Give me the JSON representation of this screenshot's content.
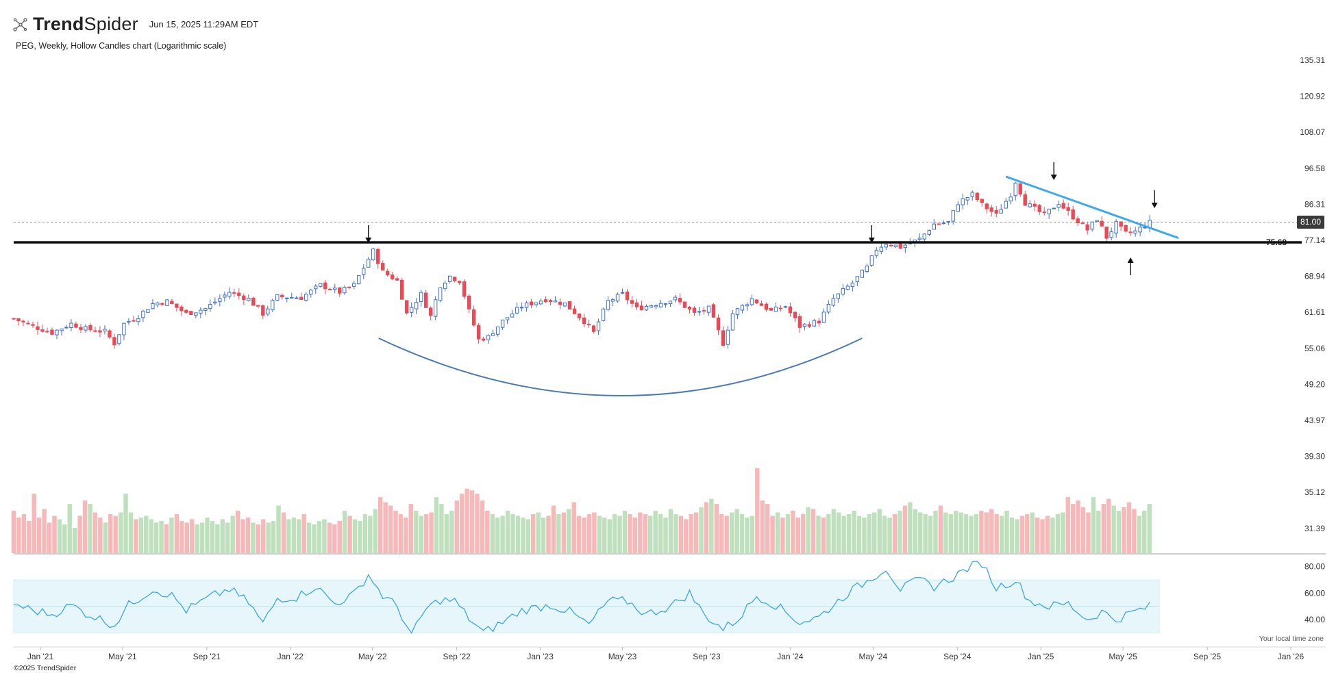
{
  "header": {
    "brand": "TrendSpider",
    "timestamp": "Jun 15, 2025 11:29AM EDT",
    "subtitle": "PEG, Weekly, Hollow Candles chart (Logarithmic scale)"
  },
  "footer": {
    "copyright": "©2025 TrendSpider",
    "timezone_note": "Your local time zone"
  },
  "colors": {
    "up": "#3b6fd6",
    "down": "#e84b55",
    "vol_up": "#bfe0bd",
    "vol_down": "#f6b8b8",
    "rsi_line": "#3aa6e0",
    "rsi_band": "#e6f6fb",
    "trend_line": "#3ea9ef",
    "cup_line": "#4a7bb7",
    "support_line": "#111111"
  },
  "chart_data": {
    "type": "candlestick",
    "symbol": "PEG",
    "interval": "Weekly",
    "scale": "log",
    "ylim": [
      47.0,
      140.0
    ],
    "price_ticks": [
      "135.31",
      "120.92",
      "108.07",
      "96.58",
      "86.31",
      "77.14",
      "68.94",
      "61.61",
      "55.06",
      "49.20",
      "43.97",
      "39.30",
      "35.12",
      "31.39"
    ],
    "x_range": [
      "2020-11-23",
      "2026-01-26"
    ],
    "x_ticks": [
      {
        "date": "2021-01-01",
        "label": "Jan '21"
      },
      {
        "date": "2021-05-01",
        "label": "May '21"
      },
      {
        "date": "2021-09-01",
        "label": "Sep '21"
      },
      {
        "date": "2022-01-01",
        "label": "Jan '22"
      },
      {
        "date": "2022-05-01",
        "label": "May '22"
      },
      {
        "date": "2022-09-01",
        "label": "Sep '22"
      },
      {
        "date": "2023-01-01",
        "label": "Jan '23"
      },
      {
        "date": "2023-05-01",
        "label": "May '23"
      },
      {
        "date": "2023-09-01",
        "label": "Sep '23"
      },
      {
        "date": "2024-01-01",
        "label": "Jan '24"
      },
      {
        "date": "2024-05-01",
        "label": "May '24"
      },
      {
        "date": "2024-09-01",
        "label": "Sep '24"
      },
      {
        "date": "2025-01-01",
        "label": "Jan '25"
      },
      {
        "date": "2025-05-01",
        "label": "May '25"
      },
      {
        "date": "2025-09-01",
        "label": "Sep '25"
      },
      {
        "date": "2026-01-01",
        "label": "Jan '26"
      }
    ],
    "last_price": "81.00",
    "support_level": "75.68",
    "close_path": [
      [
        "2020-11-23",
        58.5
      ],
      [
        "2020-12-21",
        57.0
      ],
      [
        "2021-01-18",
        55.8
      ],
      [
        "2021-02-15",
        57.5
      ],
      [
        "2021-03-08",
        56.5
      ],
      [
        "2021-04-05",
        56.0
      ],
      [
        "2021-04-19",
        53.8
      ],
      [
        "2021-05-03",
        57.5
      ],
      [
        "2021-05-24",
        59.0
      ],
      [
        "2021-06-14",
        61.5
      ],
      [
        "2021-07-05",
        62.0
      ],
      [
        "2021-08-02",
        59.5
      ],
      [
        "2021-08-30",
        60.5
      ],
      [
        "2021-10-04",
        64.0
      ],
      [
        "2021-11-01",
        62.5
      ],
      [
        "2021-11-22",
        59.5
      ],
      [
        "2021-12-13",
        63.0
      ],
      [
        "2022-01-17",
        62.8
      ],
      [
        "2022-02-14",
        65.5
      ],
      [
        "2022-03-14",
        64.0
      ],
      [
        "2022-04-04",
        65.5
      ],
      [
        "2022-04-25",
        71.5
      ],
      [
        "2022-05-02",
        73.5
      ],
      [
        "2022-05-16",
        68.5
      ],
      [
        "2022-06-06",
        66.5
      ],
      [
        "2022-06-20",
        59.5
      ],
      [
        "2022-07-11",
        63.5
      ],
      [
        "2022-07-25",
        59.0
      ],
      [
        "2022-08-08",
        65.5
      ],
      [
        "2022-08-22",
        67.5
      ],
      [
        "2022-09-05",
        66.5
      ],
      [
        "2022-09-19",
        60.0
      ],
      [
        "2022-10-03",
        54.5
      ],
      [
        "2022-10-17",
        55.0
      ],
      [
        "2022-11-07",
        58.0
      ],
      [
        "2022-12-05",
        61.0
      ],
      [
        "2023-01-09",
        62.5
      ],
      [
        "2023-02-06",
        61.5
      ],
      [
        "2023-03-06",
        58.0
      ],
      [
        "2023-03-20",
        55.8
      ],
      [
        "2023-04-10",
        62.0
      ],
      [
        "2023-05-01",
        63.5
      ],
      [
        "2023-05-22",
        60.5
      ],
      [
        "2023-06-19",
        61.5
      ],
      [
        "2023-07-17",
        62.5
      ],
      [
        "2023-08-14",
        59.5
      ],
      [
        "2023-09-04",
        60.5
      ],
      [
        "2023-09-25",
        53.8
      ],
      [
        "2023-10-09",
        59.5
      ],
      [
        "2023-11-06",
        62.5
      ],
      [
        "2023-12-04",
        60.0
      ],
      [
        "2023-12-25",
        61.0
      ],
      [
        "2024-01-15",
        57.0
      ],
      [
        "2024-02-12",
        58.0
      ],
      [
        "2024-03-04",
        62.5
      ],
      [
        "2024-04-01",
        66.0
      ],
      [
        "2024-04-22",
        69.5
      ],
      [
        "2024-05-06",
        74.0
      ],
      [
        "2024-05-20",
        75.5
      ],
      [
        "2024-06-10",
        74.5
      ],
      [
        "2024-07-08",
        76.5
      ],
      [
        "2024-07-29",
        80.5
      ],
      [
        "2024-08-19",
        81.0
      ],
      [
        "2024-09-02",
        86.5
      ],
      [
        "2024-09-23",
        89.0
      ],
      [
        "2024-10-07",
        86.0
      ],
      [
        "2024-10-28",
        83.0
      ],
      [
        "2024-11-18",
        89.0
      ],
      [
        "2024-11-25",
        93.0
      ],
      [
        "2024-12-09",
        86.5
      ],
      [
        "2025-01-06",
        83.0
      ],
      [
        "2025-01-27",
        86.5
      ],
      [
        "2025-02-17",
        82.5
      ],
      [
        "2025-03-10",
        79.0
      ],
      [
        "2025-03-24",
        82.0
      ],
      [
        "2025-04-07",
        77.0
      ],
      [
        "2025-04-21",
        80.5
      ],
      [
        "2025-05-05",
        78.0
      ],
      [
        "2025-05-19",
        78.5
      ],
      [
        "2025-06-09",
        81.0
      ]
    ],
    "rsi": {
      "band": [
        30,
        70
      ],
      "tick_labels": [
        "80.00",
        "60.00",
        "40.00"
      ],
      "ylim": [
        23,
        86
      ],
      "path": [
        [
          "2020-11-23",
          52
        ],
        [
          "2020-12-21",
          47
        ],
        [
          "2021-01-18",
          44
        ],
        [
          "2021-02-15",
          51
        ],
        [
          "2021-03-08",
          45
        ],
        [
          "2021-04-19",
          36
        ],
        [
          "2021-05-10",
          51
        ],
        [
          "2021-06-14",
          63
        ],
        [
          "2021-07-12",
          58
        ],
        [
          "2021-08-02",
          47
        ],
        [
          "2021-09-06",
          57
        ],
        [
          "2021-10-04",
          63
        ],
        [
          "2021-11-01",
          53
        ],
        [
          "2021-11-22",
          37
        ],
        [
          "2021-12-13",
          56
        ],
        [
          "2022-01-10",
          57
        ],
        [
          "2022-02-07",
          65
        ],
        [
          "2022-03-07",
          52
        ],
        [
          "2022-04-04",
          59
        ],
        [
          "2022-04-25",
          74
        ],
        [
          "2022-05-16",
          58
        ],
        [
          "2022-06-06",
          50
        ],
        [
          "2022-06-27",
          28
        ],
        [
          "2022-07-18",
          48
        ],
        [
          "2022-08-08",
          55
        ],
        [
          "2022-08-29",
          54
        ],
        [
          "2022-09-19",
          41
        ],
        [
          "2022-10-10",
          30
        ],
        [
          "2022-11-07",
          38
        ],
        [
          "2022-12-05",
          47
        ],
        [
          "2023-01-16",
          51
        ],
        [
          "2023-02-13",
          46
        ],
        [
          "2023-03-13",
          36
        ],
        [
          "2023-04-10",
          54
        ],
        [
          "2023-05-08",
          54
        ],
        [
          "2023-06-05",
          44
        ],
        [
          "2023-07-10",
          50
        ],
        [
          "2023-08-07",
          60
        ],
        [
          "2023-08-28",
          44
        ],
        [
          "2023-09-25",
          33
        ],
        [
          "2023-10-16",
          40
        ],
        [
          "2023-11-13",
          58
        ],
        [
          "2023-12-11",
          51
        ],
        [
          "2024-01-15",
          38
        ],
        [
          "2024-02-12",
          42
        ],
        [
          "2024-03-25",
          60
        ],
        [
          "2024-04-22",
          69
        ],
        [
          "2024-05-20",
          79
        ],
        [
          "2024-06-10",
          63
        ],
        [
          "2024-07-08",
          70
        ],
        [
          "2024-07-29",
          65
        ],
        [
          "2024-08-26",
          72
        ],
        [
          "2024-09-16",
          79
        ],
        [
          "2024-10-07",
          83
        ],
        [
          "2024-10-28",
          64
        ],
        [
          "2024-11-25",
          70
        ],
        [
          "2024-12-16",
          54
        ],
        [
          "2025-01-13",
          50
        ],
        [
          "2025-02-10",
          52
        ],
        [
          "2025-03-10",
          40
        ],
        [
          "2025-03-31",
          46
        ],
        [
          "2025-04-21",
          40
        ],
        [
          "2025-05-12",
          45
        ],
        [
          "2025-06-09",
          50
        ]
      ]
    },
    "volume": {
      "start_date": "2020-11-23",
      "bars_ratio": [
        0.5,
        0.42,
        0.46,
        0.38,
        0.7,
        0.42,
        0.52,
        0.36,
        0.44,
        0.4,
        0.34,
        0.58,
        0.3,
        0.44,
        0.62,
        0.58,
        0.48,
        0.42,
        0.36,
        0.46,
        0.44,
        0.48,
        0.7,
        0.48,
        0.4,
        0.42,
        0.44,
        0.4,
        0.36,
        0.38,
        0.34,
        0.42,
        0.46,
        0.38,
        0.36,
        0.4,
        0.34,
        0.36,
        0.42,
        0.38,
        0.34,
        0.4,
        0.36,
        0.44,
        0.5,
        0.4,
        0.42,
        0.36,
        0.34,
        0.4,
        0.36,
        0.38,
        0.56,
        0.48,
        0.4,
        0.42,
        0.4,
        0.46,
        0.36,
        0.34,
        0.38,
        0.4,
        0.36,
        0.34,
        0.38,
        0.5,
        0.44,
        0.4,
        0.38,
        0.46,
        0.44,
        0.52,
        0.66,
        0.6,
        0.56,
        0.5,
        0.46,
        0.42,
        0.58,
        0.5,
        0.44,
        0.46,
        0.48,
        0.66,
        0.58,
        0.46,
        0.5,
        0.62,
        0.7,
        0.76,
        0.74,
        0.7,
        0.62,
        0.5,
        0.46,
        0.42,
        0.44,
        0.5,
        0.46,
        0.44,
        0.42,
        0.4,
        0.46,
        0.48,
        0.42,
        0.44,
        0.56,
        0.46,
        0.48,
        0.52,
        0.6,
        0.44,
        0.42,
        0.46,
        0.48,
        0.44,
        0.42,
        0.4,
        0.46,
        0.44,
        0.5,
        0.46,
        0.42,
        0.48,
        0.46,
        0.44,
        0.5,
        0.46,
        0.42,
        0.52,
        0.46,
        0.44,
        0.4,
        0.46,
        0.48,
        0.54,
        0.6,
        0.64,
        0.58,
        0.46,
        0.44,
        0.48,
        0.52,
        0.46,
        0.42,
        0.44,
        1.0,
        0.62,
        0.58,
        0.44,
        0.48,
        0.42,
        0.46,
        0.5,
        0.42,
        0.46,
        0.54,
        0.52,
        0.44,
        0.42,
        0.46,
        0.52,
        0.48,
        0.44,
        0.46,
        0.5,
        0.44,
        0.42,
        0.46,
        0.48,
        0.52,
        0.44,
        0.42,
        0.46,
        0.5,
        0.56,
        0.6,
        0.52,
        0.48,
        0.46,
        0.44,
        0.5,
        0.56,
        0.48,
        0.46,
        0.5,
        0.48,
        0.46,
        0.44,
        0.46,
        0.5,
        0.48,
        0.52,
        0.46,
        0.44,
        0.5,
        0.42,
        0.4,
        0.44,
        0.46,
        0.48,
        0.42,
        0.4,
        0.44,
        0.42,
        0.46,
        0.48,
        0.66,
        0.58,
        0.62,
        0.54,
        0.48,
        0.66,
        0.5,
        0.58,
        0.64,
        0.56,
        0.5,
        0.54,
        0.6,
        0.52,
        0.44,
        0.5,
        0.58
      ]
    }
  }
}
